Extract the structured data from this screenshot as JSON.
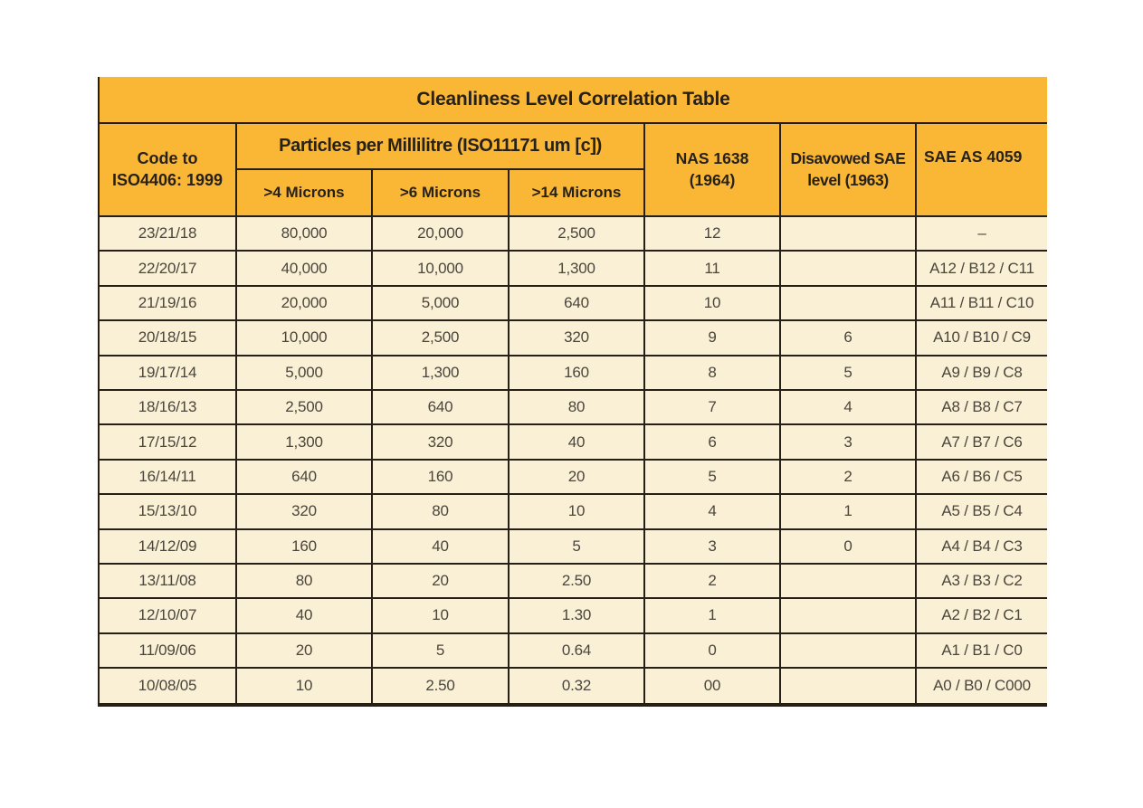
{
  "chart_data": {
    "type": "table",
    "title": "Cleanliness Level Correlation Table",
    "header": {
      "code_line1": "Code to",
      "code_line2": "ISO4406: 1999",
      "particles_group": "Particles per Millilitre (ISO11171 um [c])",
      "subcolumns": [
        ">4 Microns",
        ">6 Microns",
        ">14 Microns"
      ],
      "nas_line1": "NAS 1638",
      "nas_line2": "(1964)",
      "disavowed_line1": "Disavowed SAE",
      "disavowed_line2": "level (1963)",
      "sae_as": "SAE AS 4059"
    },
    "columns": [
      "Code to ISO4406: 1999",
      ">4 Microns",
      ">6 Microns",
      ">14 Microns",
      "NAS 1638 (1964)",
      "Disavowed SAE level (1963)",
      "SAE AS 4059"
    ],
    "rows": [
      [
        "23/21/18",
        "80,000",
        "20,000",
        "2,500",
        "12",
        "",
        "–"
      ],
      [
        "22/20/17",
        "40,000",
        "10,000",
        "1,300",
        "11",
        "",
        "A12 / B12 / C11"
      ],
      [
        "21/19/16",
        "20,000",
        "5,000",
        "640",
        "10",
        "",
        "A11 / B11 / C10"
      ],
      [
        "20/18/15",
        "10,000",
        "2,500",
        "320",
        "9",
        "6",
        "A10 / B10 / C9"
      ],
      [
        "19/17/14",
        "5,000",
        "1,300",
        "160",
        "8",
        "5",
        "A9 / B9 / C8"
      ],
      [
        "18/16/13",
        "2,500",
        "640",
        "80",
        "7",
        "4",
        "A8 / B8 / C7"
      ],
      [
        "17/15/12",
        "1,300",
        "320",
        "40",
        "6",
        "3",
        "A7 / B7 / C6"
      ],
      [
        "16/14/11",
        "640",
        "160",
        "20",
        "5",
        "2",
        "A6 / B6 / C5"
      ],
      [
        "15/13/10",
        "320",
        "80",
        "10",
        "4",
        "1",
        "A5 / B5 / C4"
      ],
      [
        "14/12/09",
        "160",
        "40",
        "5",
        "3",
        "0",
        "A4 / B4 / C3"
      ],
      [
        "13/11/08",
        "80",
        "20",
        "2.50",
        "2",
        "",
        "A3 / B3 / C2"
      ],
      [
        "12/10/07",
        "40",
        "10",
        "1.30",
        "1",
        "",
        "A2 / B2 / C1"
      ],
      [
        "11/09/06",
        "20",
        "5",
        "0.64",
        "0",
        "",
        "A1 / B1 / C0"
      ],
      [
        "10/08/05",
        "10",
        "2.50",
        "0.32",
        "00",
        "",
        "A0 / B0 / C000"
      ]
    ]
  },
  "colors": {
    "page_bg": "#FFFFFF",
    "header_orange": "#FAB735",
    "row_cream": "#FAF0D6",
    "line_dark": "#261F17",
    "text_head": "#26211A",
    "text_data": "#4B463C"
  }
}
